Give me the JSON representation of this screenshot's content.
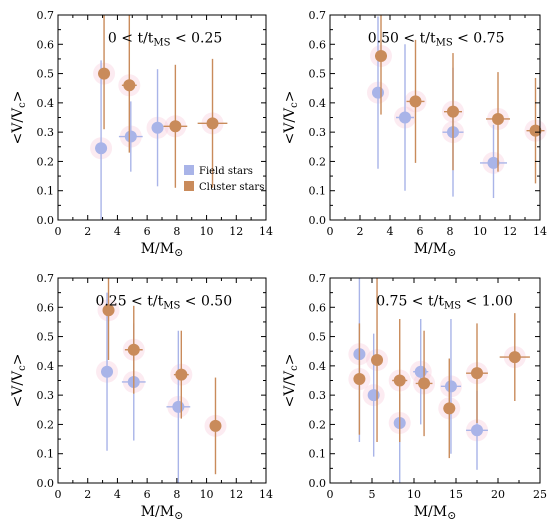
{
  "chart_data": [
    {
      "type": "scatter",
      "annotation": "0 < t/t_MS < 0.25",
      "xlabel": "M/M_sun",
      "ylabel": "<V/V_c>",
      "xlim": [
        0,
        14
      ],
      "ylim": [
        0,
        0.7
      ],
      "xticks": [
        0,
        2,
        4,
        6,
        8,
        10,
        12,
        14
      ],
      "yticks": [
        0.0,
        0.1,
        0.2,
        0.3,
        0.4,
        0.5,
        0.6,
        0.7
      ],
      "legend": {
        "placement": "bottom-right",
        "entries": [
          "Field stars",
          "Cluster stars"
        ]
      },
      "series": [
        {
          "name": "Field stars",
          "color": "#a9b4e8",
          "points": [
            {
              "x": 2.9,
              "y": 0.245,
              "xerr": 0.4,
              "yerr_lo": 0.245,
              "yerr_hi": 0.3
            },
            {
              "x": 4.9,
              "y": 0.285,
              "xerr": 0.8,
              "yerr_lo": 0.12,
              "yerr_hi": 0.12
            },
            {
              "x": 6.7,
              "y": 0.315,
              "xerr": 0.4,
              "yerr_lo": 0.2,
              "yerr_hi": 0.2
            }
          ]
        },
        {
          "name": "Cluster stars",
          "color": "#c98b5b",
          "points": [
            {
              "x": 3.1,
              "y": 0.5,
              "xerr": 0.4,
              "yerr_lo": 0.19,
              "yerr_hi": 0.2
            },
            {
              "x": 4.8,
              "y": 0.46,
              "xerr": 0.5,
              "yerr_lo": 0.23,
              "yerr_hi": 0.24
            },
            {
              "x": 7.9,
              "y": 0.32,
              "xerr": 0.8,
              "yerr_lo": 0.21,
              "yerr_hi": 0.21
            },
            {
              "x": 10.4,
              "y": 0.33,
              "xerr": 1.0,
              "yerr_lo": 0.22,
              "yerr_hi": 0.22
            }
          ]
        }
      ]
    },
    {
      "type": "scatter",
      "annotation": "0.50 < t/t_MS < 0.75",
      "xlabel": "M/M_sun",
      "ylabel": "<V/V_c>",
      "xlim": [
        0,
        14
      ],
      "ylim": [
        0,
        0.7
      ],
      "xticks": [
        0,
        2,
        4,
        6,
        8,
        10,
        12,
        14
      ],
      "yticks": [
        0.0,
        0.1,
        0.2,
        0.3,
        0.4,
        0.5,
        0.6,
        0.7
      ],
      "series": [
        {
          "name": "Field stars",
          "color": "#a9b4e8",
          "points": [
            {
              "x": 3.2,
              "y": 0.435,
              "xerr": 0.3,
              "yerr_lo": 0.26,
              "yerr_hi": 0.26
            },
            {
              "x": 5.0,
              "y": 0.35,
              "xerr": 0.6,
              "yerr_lo": 0.25,
              "yerr_hi": 0.25
            },
            {
              "x": 8.2,
              "y": 0.3,
              "xerr": 0.7,
              "yerr_lo": 0.22,
              "yerr_hi": 0.22
            },
            {
              "x": 10.9,
              "y": 0.195,
              "xerr": 0.9,
              "yerr_lo": 0.12,
              "yerr_hi": 0.13
            }
          ]
        },
        {
          "name": "Cluster stars",
          "color": "#c98b5b",
          "points": [
            {
              "x": 3.4,
              "y": 0.56,
              "xerr": 0.4,
              "yerr_lo": 0.2,
              "yerr_hi": 0.2
            },
            {
              "x": 5.7,
              "y": 0.405,
              "xerr": 0.6,
              "yerr_lo": 0.21,
              "yerr_hi": 0.21
            },
            {
              "x": 8.2,
              "y": 0.37,
              "xerr": 0.6,
              "yerr_lo": 0.2,
              "yerr_hi": 0.2
            },
            {
              "x": 11.2,
              "y": 0.345,
              "xerr": 0.8,
              "yerr_lo": 0.18,
              "yerr_hi": 0.16
            },
            {
              "x": 13.7,
              "y": 0.305,
              "xerr": 0.6,
              "yerr_lo": 0.18,
              "yerr_hi": 0.18
            }
          ]
        }
      ]
    },
    {
      "type": "scatter",
      "annotation": "0.25 < t/t_MS < 0.50",
      "xlabel": "M/M_sun",
      "ylabel": "<V/V_c>",
      "xlim": [
        0,
        14
      ],
      "ylim": [
        0,
        0.7
      ],
      "xticks": [
        0,
        2,
        4,
        6,
        8,
        10,
        12,
        14
      ],
      "yticks": [
        0.0,
        0.1,
        0.2,
        0.3,
        0.4,
        0.5,
        0.6,
        0.7
      ],
      "series": [
        {
          "name": "Field stars",
          "color": "#a9b4e8",
          "points": [
            {
              "x": 3.3,
              "y": 0.38,
              "xerr": 0.4,
              "yerr_lo": 0.27,
              "yerr_hi": 0.27
            },
            {
              "x": 5.1,
              "y": 0.345,
              "xerr": 0.8,
              "yerr_lo": 0.2,
              "yerr_hi": 0.2
            },
            {
              "x": 8.1,
              "y": 0.26,
              "xerr": 0.8,
              "yerr_lo": 0.26,
              "yerr_hi": 0.26
            }
          ]
        },
        {
          "name": "Cluster stars",
          "color": "#c98b5b",
          "points": [
            {
              "x": 3.4,
              "y": 0.59,
              "xerr": 0.3,
              "yerr_lo": 0.17,
              "yerr_hi": 0.15
            },
            {
              "x": 5.1,
              "y": 0.455,
              "xerr": 0.6,
              "yerr_lo": 0.15,
              "yerr_hi": 0.15
            },
            {
              "x": 8.3,
              "y": 0.37,
              "xerr": 0.5,
              "yerr_lo": 0.15,
              "yerr_hi": 0.15
            },
            {
              "x": 10.6,
              "y": 0.195,
              "xerr": 0.3,
              "yerr_lo": 0.165,
              "yerr_hi": 0.165
            }
          ]
        }
      ]
    },
    {
      "type": "scatter",
      "annotation": "0.75 < t/t_MS < 1.00",
      "xlabel": "M/M_sun",
      "ylabel": "<V/V_c>",
      "xlim": [
        0,
        25
      ],
      "ylim": [
        0,
        0.7
      ],
      "xticks": [
        0,
        5,
        10,
        15,
        20,
        25
      ],
      "yticks": [
        0.0,
        0.1,
        0.2,
        0.3,
        0.4,
        0.5,
        0.6,
        0.7
      ],
      "series": [
        {
          "name": "Field stars",
          "color": "#a9b4e8",
          "points": [
            {
              "x": 3.5,
              "y": 0.44,
              "xerr": 0.4,
              "yerr_lo": 0.3,
              "yerr_hi": 0.3
            },
            {
              "x": 5.2,
              "y": 0.3,
              "xerr": 0.6,
              "yerr_lo": 0.21,
              "yerr_hi": 0.21
            },
            {
              "x": 8.3,
              "y": 0.205,
              "xerr": 0.5,
              "yerr_lo": 0.205,
              "yerr_hi": 0.1
            },
            {
              "x": 10.8,
              "y": 0.38,
              "xerr": 0.9,
              "yerr_lo": 0.18,
              "yerr_hi": 0.18
            },
            {
              "x": 14.4,
              "y": 0.33,
              "xerr": 1.2,
              "yerr_lo": 0.23,
              "yerr_hi": 0.23
            },
            {
              "x": 17.5,
              "y": 0.18,
              "xerr": 1.3,
              "yerr_lo": 0.135,
              "yerr_hi": 0.135
            }
          ]
        },
        {
          "name": "Cluster stars",
          "color": "#c98b5b",
          "points": [
            {
              "x": 3.5,
              "y": 0.355,
              "xerr": 0.6,
              "yerr_lo": 0.19,
              "yerr_hi": 0.19
            },
            {
              "x": 5.6,
              "y": 0.42,
              "xerr": 0.7,
              "yerr_lo": 0.28,
              "yerr_hi": 0.28
            },
            {
              "x": 8.3,
              "y": 0.35,
              "xerr": 0.9,
              "yerr_lo": 0.21,
              "yerr_hi": 0.21
            },
            {
              "x": 11.2,
              "y": 0.34,
              "xerr": 1.0,
              "yerr_lo": 0.18,
              "yerr_hi": 0.18
            },
            {
              "x": 14.2,
              "y": 0.255,
              "xerr": 0.7,
              "yerr_lo": 0.17,
              "yerr_hi": 0.17
            },
            {
              "x": 17.5,
              "y": 0.375,
              "xerr": 1.3,
              "yerr_lo": 0.17,
              "yerr_hi": 0.17
            },
            {
              "x": 22.0,
              "y": 0.43,
              "xerr": 1.8,
              "yerr_lo": 0.15,
              "yerr_hi": 0.15
            }
          ]
        }
      ]
    }
  ]
}
